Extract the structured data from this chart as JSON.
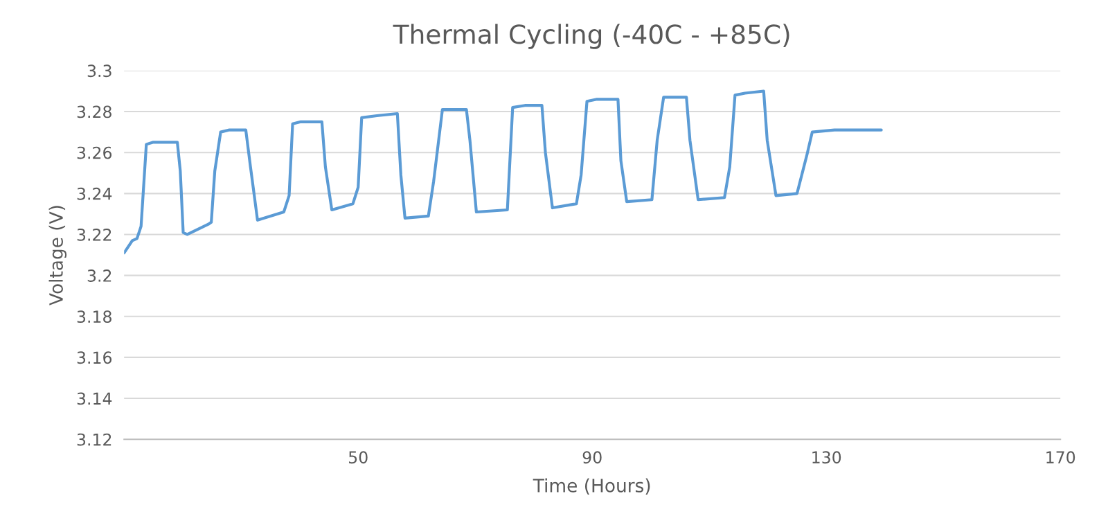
{
  "chart_data": {
    "type": "line",
    "title": "Thermal Cycling (-40C - +85C)",
    "xlabel": "Time (Hours)",
    "ylabel": "Voltage (V)",
    "xlim": [
      10,
      170
    ],
    "xticks": [
      50,
      90,
      130,
      170
    ],
    "ylim": [
      3.12,
      3.3
    ],
    "yticks": [
      {
        "value": 3.12,
        "label": "3.12"
      },
      {
        "value": 3.14,
        "label": "3.14"
      },
      {
        "value": 3.16,
        "label": "3.16"
      },
      {
        "value": 3.18,
        "label": "3.18"
      },
      {
        "value": 3.2,
        "label": "3.2"
      },
      {
        "value": 3.22,
        "label": "3.22"
      },
      {
        "value": 3.24,
        "label": "3.24"
      },
      {
        "value": 3.26,
        "label": "3.26"
      },
      {
        "value": 3.28,
        "label": "3.28"
      },
      {
        "value": 3.3,
        "label": "3.3"
      }
    ],
    "grid": "y",
    "marker": "none",
    "line_style": "solid",
    "series": [
      {
        "color": "#5b9bd5",
        "x": [
          10,
          11.4,
          12.2,
          12.9,
          13.8,
          14.9,
          19.1,
          19.6,
          20.1,
          20.8,
          24.4,
          24.9,
          25.5,
          26.5,
          27.9,
          30.8,
          31.6,
          32.8,
          37.3,
          38.2,
          38.8,
          40.2,
          43.8,
          44.4,
          45.5,
          49.1,
          50.0,
          50.6,
          53.2,
          56.7,
          57.3,
          58.0,
          62.0,
          62.9,
          64.4,
          65.5,
          68.5,
          69.1,
          70.2,
          75.5,
          76.4,
          78.5,
          81.4,
          82.0,
          83.2,
          87.3,
          88.1,
          89.1,
          90.8,
          94.4,
          94.9,
          95.9,
          100.2,
          101.1,
          102.2,
          106.1,
          106.7,
          108.1,
          112.6,
          113.5,
          114.4,
          116.1,
          119.3,
          119.9,
          121.4,
          125.0,
          126.7,
          127.6,
          131.4,
          139.4
        ],
        "values": [
          3.211,
          3.217,
          3.218,
          3.224,
          3.264,
          3.265,
          3.265,
          3.251,
          3.221,
          3.22,
          3.225,
          3.226,
          3.251,
          3.27,
          3.271,
          3.271,
          3.253,
          3.227,
          3.231,
          3.239,
          3.274,
          3.275,
          3.275,
          3.253,
          3.232,
          3.235,
          3.243,
          3.277,
          3.278,
          3.279,
          3.249,
          3.228,
          3.229,
          3.246,
          3.281,
          3.281,
          3.281,
          3.266,
          3.231,
          3.232,
          3.282,
          3.283,
          3.283,
          3.26,
          3.233,
          3.235,
          3.249,
          3.285,
          3.286,
          3.286,
          3.256,
          3.236,
          3.237,
          3.266,
          3.287,
          3.287,
          3.266,
          3.237,
          3.238,
          3.253,
          3.288,
          3.289,
          3.29,
          3.266,
          3.239,
          3.24,
          3.259,
          3.27,
          3.271,
          3.271
        ]
      }
    ]
  }
}
